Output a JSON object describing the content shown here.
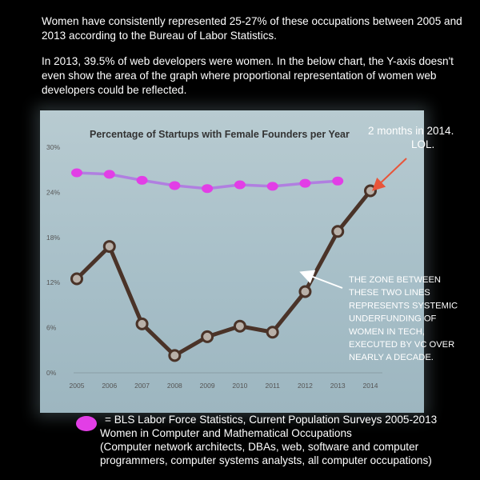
{
  "intro": {
    "para1": "Women have consistently represented 25-27% of these occupations between 2005 and 2013 according to the Bureau of Labor Statistics.",
    "para2": "In 2013, 39.5% of web developers were women. In the below chart, the  Y-axis doesn't even show the area of the graph where proportional representation of women web developers could be reflected."
  },
  "annotations": {
    "months": [
      "2 months in 2014.",
      "LOL."
    ],
    "zone": [
      "THE ZONE BETWEEN",
      "THESE TWO LINES",
      "REPRESENTS SYSTEMIC",
      "UNDERFUNDING OF",
      "WOMEN IN TECH,",
      "EXECUTED BY VC OVER",
      "NEARLY A DECADE."
    ]
  },
  "legend": {
    "line1": "= BLS Labor Force Statistics, Current Population Surveys 2005-2013",
    "line2": "Women in Computer and Mathematical Occupations",
    "line3": "(Computer network architects, DBAs, web, software and computer",
    "line4": "programmers, computer systems analysts, all computer occupations)"
  },
  "colors": {
    "bls_line": "#b07fe0",
    "bls_dot": "#e23ee6",
    "startup_line": "#4a3328",
    "arrow_red": "#e8553a",
    "arrow_white": "#ffffff"
  },
  "chart_data": {
    "type": "line",
    "title": "Percentage of Startups with Female Founders per Year",
    "xlabel": "",
    "ylabel": "",
    "categories": [
      "2005",
      "2006",
      "2007",
      "2008",
      "2009",
      "2010",
      "2011",
      "2012",
      "2013",
      "2014"
    ],
    "yticks": [
      "0%",
      "6%",
      "12%",
      "18%",
      "24%",
      "30%"
    ],
    "ylim": [
      0,
      30
    ],
    "grid": false,
    "series": [
      {
        "key": "startups",
        "values": [
          12.5,
          16.8,
          6.5,
          2.3,
          4.8,
          6.2,
          5.4,
          10.8,
          18.8,
          24.2
        ]
      },
      {
        "key": "bls",
        "values": [
          26.6,
          26.4,
          25.6,
          24.9,
          24.5,
          25.0,
          24.8,
          25.2,
          25.5,
          null
        ]
      }
    ]
  }
}
